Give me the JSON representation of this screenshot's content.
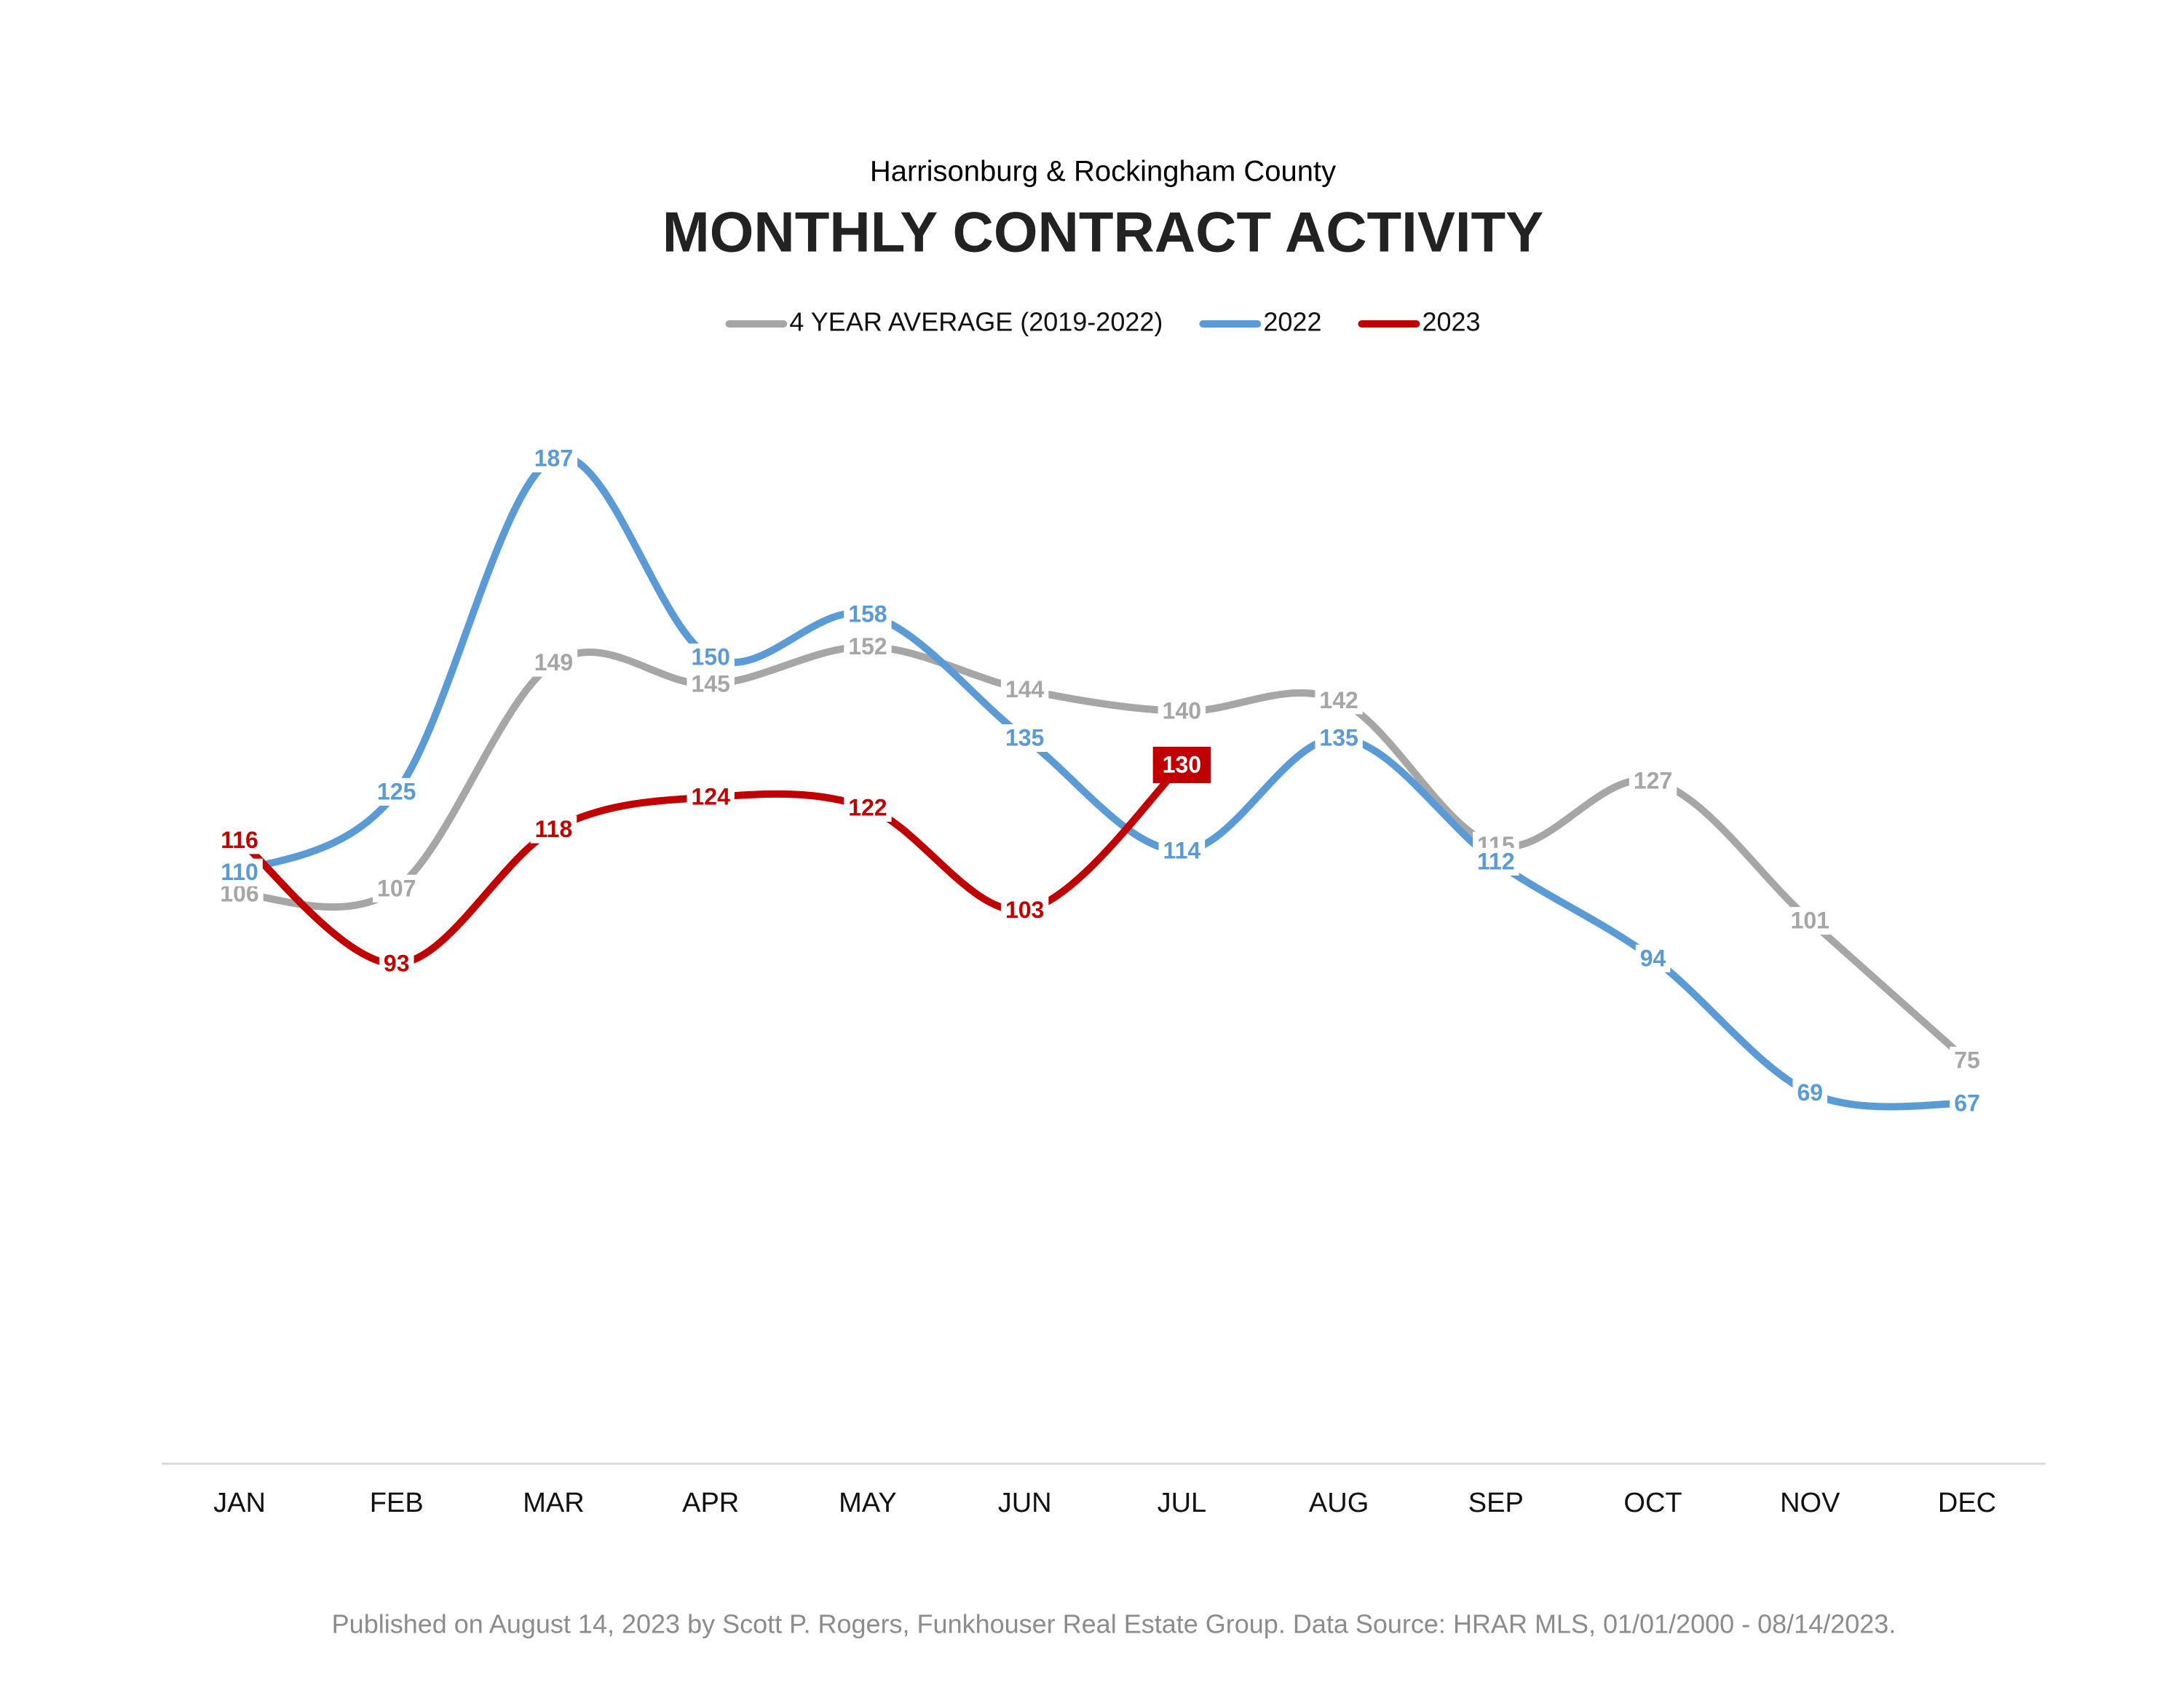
{
  "chart_data": {
    "type": "line",
    "subtitle": "Harrisonburg & Rockingham County",
    "title": "MONTHLY CONTRACT ACTIVITY",
    "categories": [
      "JAN",
      "FEB",
      "MAR",
      "APR",
      "MAY",
      "JUN",
      "JUL",
      "AUG",
      "SEP",
      "OCT",
      "NOV",
      "DEC"
    ],
    "series": [
      {
        "name": "4 YEAR AVERAGE (2019-2022)",
        "color": "#a6a6a6",
        "values": [
          106,
          107,
          149,
          145,
          152,
          144,
          140,
          142,
          115,
          127,
          101,
          75
        ]
      },
      {
        "name": "2022",
        "color": "#5b9bd5",
        "values": [
          110,
          125,
          187,
          150,
          158,
          135,
          114,
          135,
          112,
          94,
          69,
          67
        ]
      },
      {
        "name": "2023",
        "color": "#c00000",
        "values": [
          116,
          93,
          118,
          124,
          122,
          103,
          130,
          null,
          null,
          null,
          null,
          null
        ]
      }
    ],
    "ylim": [
      0,
      200
    ],
    "legend": "top",
    "footer": "Published on August 14, 2023 by Scott P. Rogers, Funkhouser Real Estate Group. Data Source: HRAR MLS, 01/01/2000 - 08/14/2023."
  }
}
